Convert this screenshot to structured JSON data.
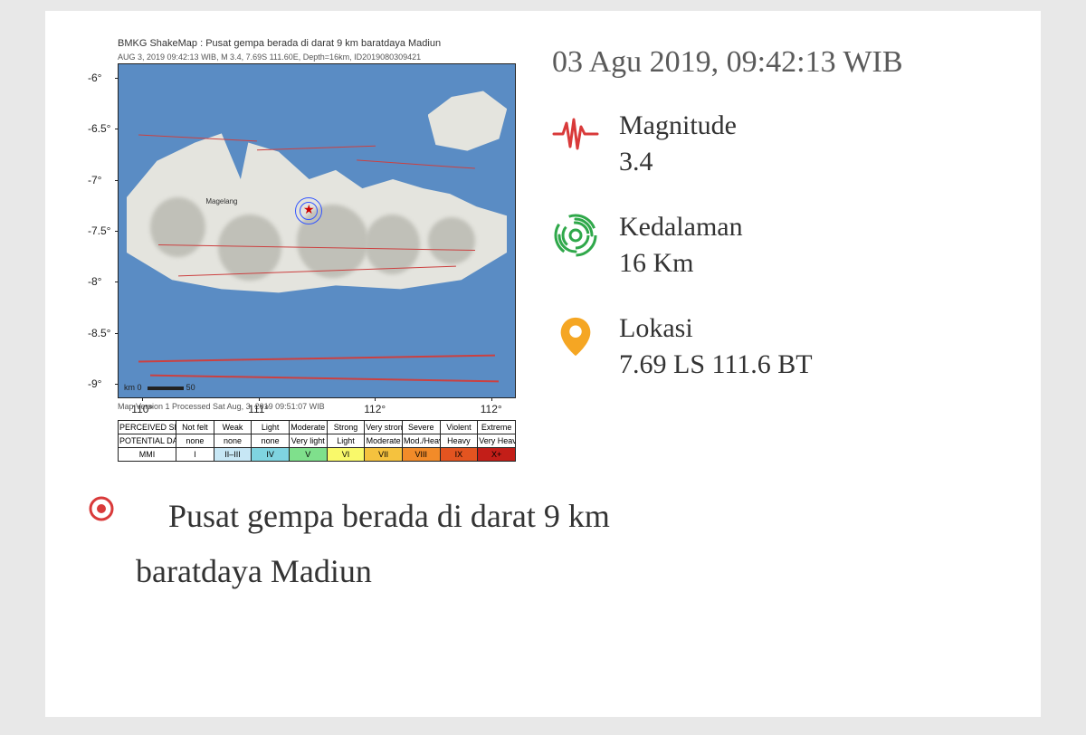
{
  "datetime": "03 Agu 2019, 09:42:13 WIB",
  "map": {
    "title": "BMKG ShakeMap : Pusat gempa berada di darat 9 km baratdaya Madiun",
    "subtitle": "AUG 3, 2019 09:42:13 WIB, M 3.4, 7.69S 111.60E, Depth=16km, ID2019080309421",
    "footer": "Map Version 1 Processed Sat Aug, 3, 2019 09:51:07 WIB",
    "scale_label": "km",
    "scale_max": "50",
    "y_ticks": [
      "-6°",
      "-6.5°",
      "-7°",
      "-7.5°",
      "-8°",
      "-8.5°",
      "-9°"
    ],
    "x_ticks": [
      "110°",
      "111°",
      "112°",
      "112°"
    ],
    "cities": [
      "Magelang",
      "",
      ""
    ],
    "sea_color": "#5a8cc4",
    "land_color": "#e4e4de",
    "fault_color": "#cc4040",
    "epi_star_color": "#cc0000",
    "epi_ring_color": "#3355ff"
  },
  "intensity_table": {
    "row_headers": [
      "PERCEIVED SHAKING",
      "POTENTIAL DAMAGE",
      "MMI"
    ],
    "shaking": [
      "Not felt",
      "Weak",
      "Light",
      "Moderate",
      "Strong",
      "Very strong",
      "Severe",
      "Violent",
      "Extreme"
    ],
    "damage": [
      "none",
      "none",
      "none",
      "Very light",
      "Light",
      "Moderate",
      "Mod./Heavy",
      "Heavy",
      "Very Heavy"
    ],
    "mmi": [
      "I",
      "II–III",
      "IV",
      "V",
      "VI",
      "VII",
      "VIII",
      "IX",
      "X+"
    ],
    "mmi_colors": [
      "#ffffff",
      "#c7e7f5",
      "#7fd4e0",
      "#7fe08c",
      "#f9f96a",
      "#f5c23e",
      "#f28b29",
      "#e35420",
      "#c31e18"
    ]
  },
  "info": {
    "magnitude": {
      "label": "Magnitude",
      "value": "3.4",
      "icon_color": "#d93a3a"
    },
    "depth": {
      "label": "Kedalaman",
      "value": "16 Km",
      "icon_color": "#2fa84a"
    },
    "location": {
      "label": "Lokasi",
      "value": "7.69 LS 111.6 BT",
      "icon_color": "#f5a623"
    }
  },
  "footer": {
    "bullet_color": "#d93a3a",
    "line1": "Pusat gempa berada di darat 9 km",
    "line2": "baratdaya Madiun"
  }
}
